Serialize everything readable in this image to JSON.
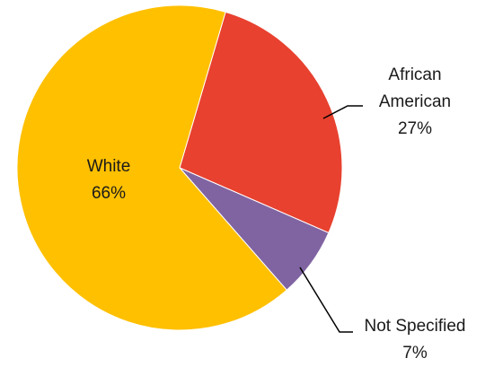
{
  "chart_data": {
    "type": "pie",
    "title": "",
    "legend": "none",
    "slices": [
      {
        "label_lines": [
          "African",
          "American"
        ],
        "value": 27,
        "value_text": "27%",
        "color": "#E8412F",
        "label_placement": "outside-right"
      },
      {
        "label_lines": [
          "Not Specified"
        ],
        "value": 7,
        "value_text": "7%",
        "color": "#8064A2",
        "label_placement": "outside-bottom-right"
      },
      {
        "label_lines": [
          "White"
        ],
        "value": 66,
        "value_text": "66%",
        "color": "#FFC000",
        "label_placement": "inside"
      }
    ]
  }
}
